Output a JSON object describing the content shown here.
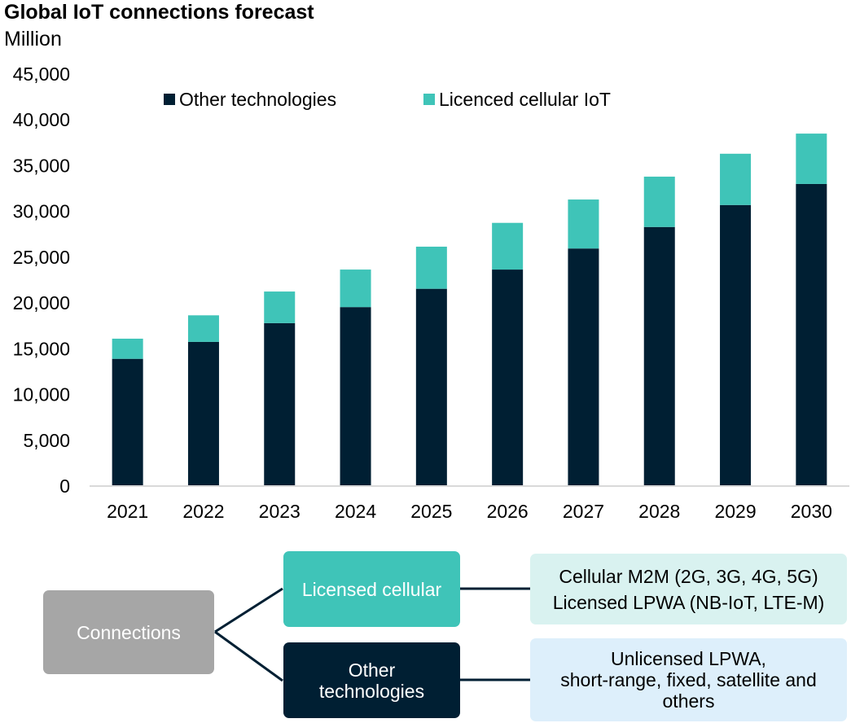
{
  "chart_data": {
    "type": "bar",
    "stacked": true,
    "title": "Global IoT connections forecast",
    "subtitle": "Million",
    "xlabel": "",
    "ylabel": "Million",
    "ylim": [
      0,
      45000
    ],
    "yticks": [
      0,
      5000,
      10000,
      15000,
      20000,
      25000,
      30000,
      35000,
      40000,
      45000
    ],
    "ytick_labels": [
      "0",
      "5,000",
      "10,000",
      "15,000",
      "20,000",
      "25,000",
      "30,000",
      "35,000",
      "40,000",
      "45,000"
    ],
    "grid": false,
    "legend_position": "top",
    "categories": [
      "2021",
      "2022",
      "2023",
      "2024",
      "2025",
      "2026",
      "2027",
      "2028",
      "2029",
      "2030"
    ],
    "series": [
      {
        "name": "Other technologies",
        "color": "#001f33",
        "values": [
          13900,
          15750,
          17800,
          19550,
          21550,
          23650,
          25950,
          28300,
          30700,
          33000
        ]
      },
      {
        "name": "Licenced cellular IoT",
        "color": "#3fc4b8",
        "values": [
          2200,
          2900,
          3450,
          4100,
          4600,
          5100,
          5350,
          5500,
          5600,
          5500
        ]
      }
    ]
  },
  "diagram": {
    "root": {
      "label": "Connections",
      "color": "#a6a6a6"
    },
    "branches": [
      {
        "label_lines": [
          "Licensed cellular"
        ],
        "color": "#3fc4b8",
        "detail_lines": [
          "Cellular M2M (2G, 3G, 4G, 5G)",
          "Licensed LPWA (NB-IoT, LTE-M)"
        ],
        "detail_color": "#d9f2f0"
      },
      {
        "label_lines": [
          "Other",
          "technologies"
        ],
        "color": "#001f33",
        "detail_lines": [
          "Unlicensed LPWA,",
          "short-range, fixed, satellite and",
          "others"
        ],
        "detail_color": "#ddeffb"
      }
    ]
  }
}
